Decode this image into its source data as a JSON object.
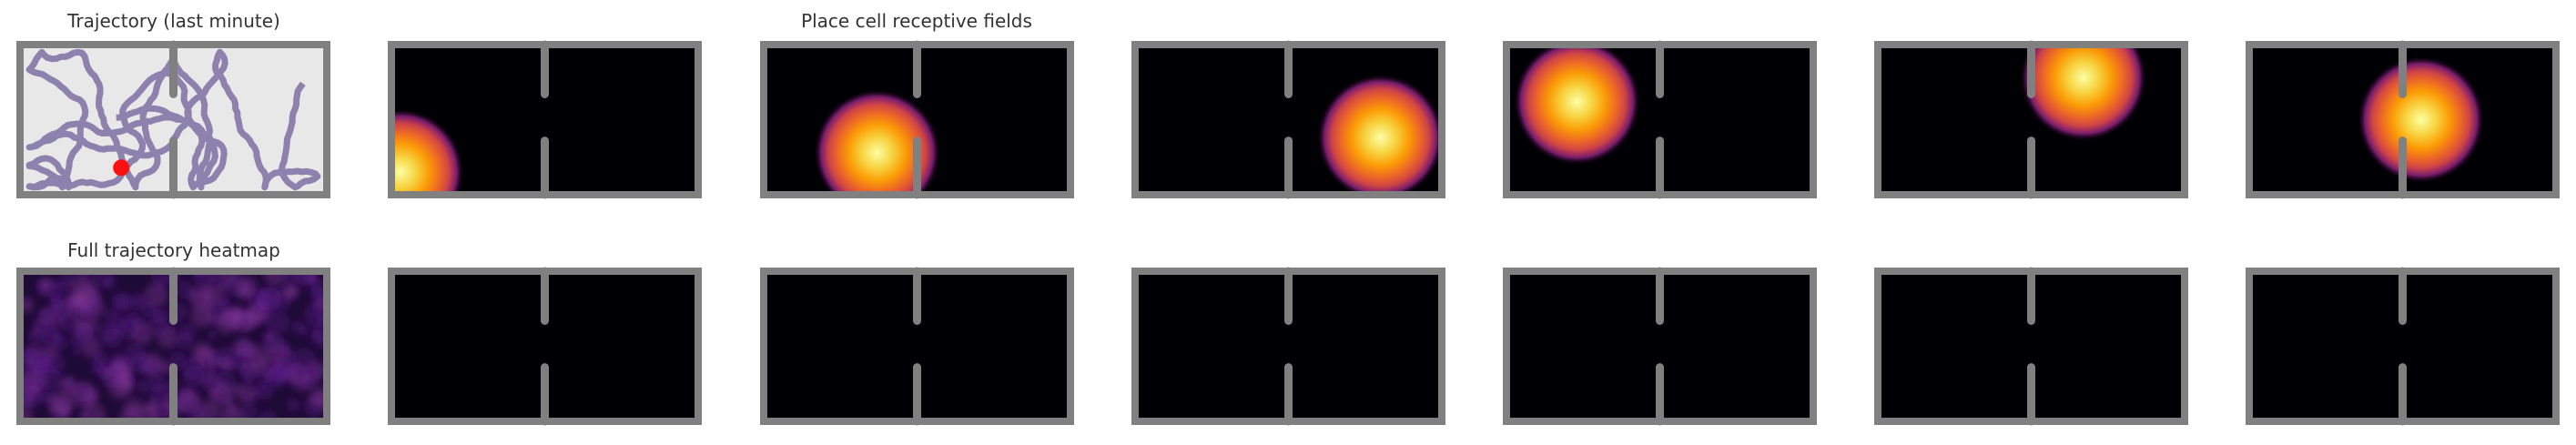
{
  "figure": {
    "titles": {
      "trajectory": "Trajectory (last minute)",
      "place_cells": "Place cell receptive fields",
      "heatmap": "Full trajectory heatmap"
    }
  }
}
